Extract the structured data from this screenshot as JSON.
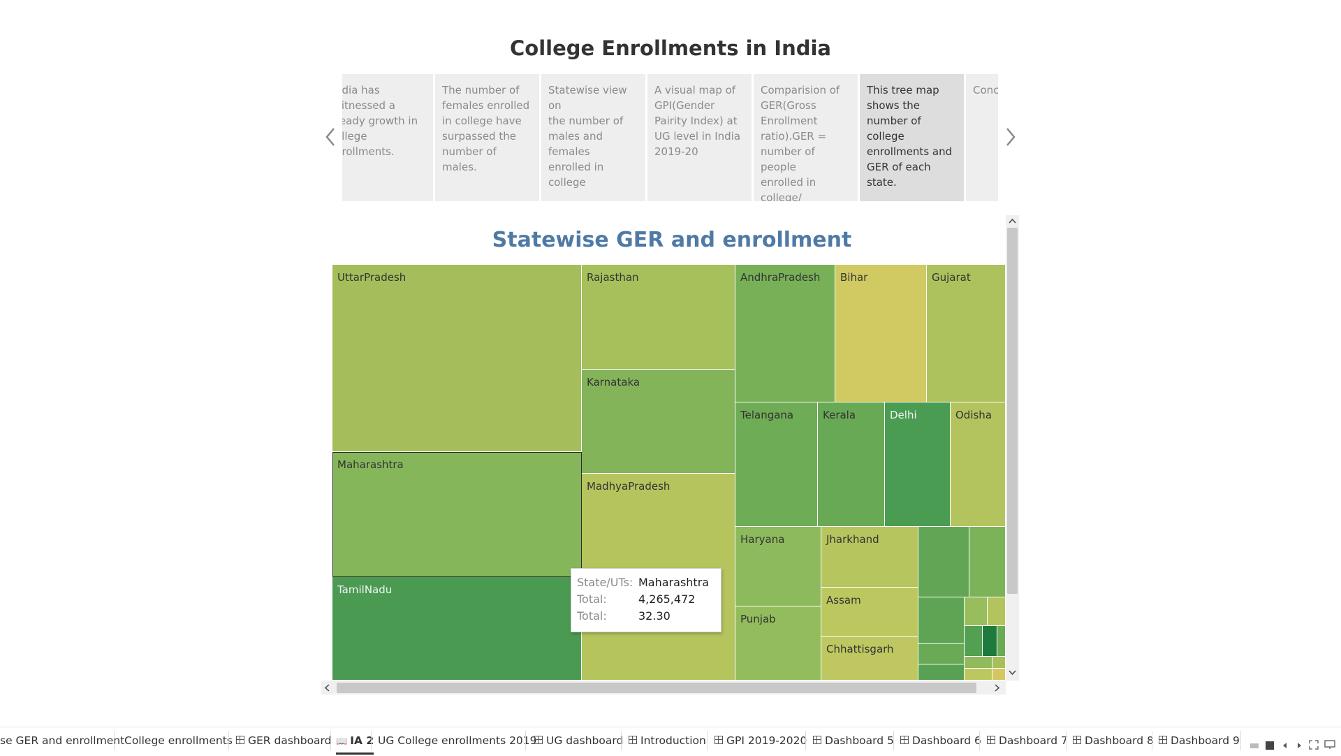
{
  "story": {
    "title": "College Enrollments in India",
    "points": [
      "ndia has\nvitnessed a\nteady growth in\nollege\nnrollments.",
      "The number of\nfemales enrolled\nin college have\nsurpassed the\nnumber of males.",
      "Statewise view on\nthe number of\nmales and females\nenrolled in college",
      "A visual map of\nGPI(Gender\nPairity Index) at\nUG level in India\n2019-20",
      "Comparision of\nGER(Gross\nEnrollment\nratio).GER =\nnumber of people\nenrolled in college/\ntotal number of",
      "This tree map\nshows the\nnumber of college\nenrollments and\nGER of each state.",
      "Concl"
    ],
    "active_point": 5
  },
  "viz": {
    "title": "Statewise GER and enrollment",
    "states": [
      {
        "name": "UttarPradesh",
        "color": "#a3be5a"
      },
      {
        "name": "Maharashtra",
        "color": "#86b65a"
      },
      {
        "name": "TamilNadu",
        "color": "#4a9a52"
      },
      {
        "name": "Rajasthan",
        "color": "#a6c05c"
      },
      {
        "name": "Karnataka",
        "color": "#84b45a"
      },
      {
        "name": "MadhyaPradesh",
        "color": "#b6c45e"
      },
      {
        "name": "AndhraPradesh",
        "color": "#78b058"
      },
      {
        "name": "Bihar",
        "color": "#d1c962"
      },
      {
        "name": "Gujarat",
        "color": "#adc25c"
      },
      {
        "name": "Telangana",
        "color": "#6fac56"
      },
      {
        "name": "Kerala",
        "color": "#68a955"
      },
      {
        "name": "Delhi",
        "color": "#4a9c52"
      },
      {
        "name": "Odisha",
        "color": "#b3c45e"
      },
      {
        "name": "Haryana",
        "color": "#8dba5c"
      },
      {
        "name": "Jharkhand",
        "color": "#b6c55e"
      },
      {
        "name": "Assam",
        "color": "#bcc75f"
      },
      {
        "name": "Chhattisgarh",
        "color": "#bfc860"
      },
      {
        "name": "Punjab",
        "color": "#93bc5c"
      }
    ],
    "tooltip": {
      "rows": [
        {
          "key": "State/UTs:",
          "value": "Maharashtra"
        },
        {
          "key": "Total:",
          "value": "4,265,472"
        },
        {
          "key": "Total:",
          "value": "32.30"
        }
      ]
    }
  },
  "tabs": [
    {
      "label": "se GER and enrollment",
      "icon": ""
    },
    {
      "label": "College enrollments",
      "icon": ""
    },
    {
      "label": "GER dashboard",
      "icon": "grid-icon"
    },
    {
      "label": "IA 2",
      "icon": "book-icon",
      "active": true
    },
    {
      "label": "UG College enrollments 2019",
      "icon": ""
    },
    {
      "label": "UG dashboard",
      "icon": "grid-icon"
    },
    {
      "label": "Introduction",
      "icon": "grid-icon"
    },
    {
      "label": "GPI 2019-2020",
      "icon": "grid-icon"
    },
    {
      "label": "Dashboard 5",
      "icon": "grid-icon"
    },
    {
      "label": "Dashboard 6",
      "icon": "grid-icon"
    },
    {
      "label": "Dashboard 7",
      "icon": "grid-icon"
    },
    {
      "label": "Dashboard 8",
      "icon": "grid-icon"
    },
    {
      "label": "Dashboard 9",
      "icon": "grid-icon"
    }
  ]
}
